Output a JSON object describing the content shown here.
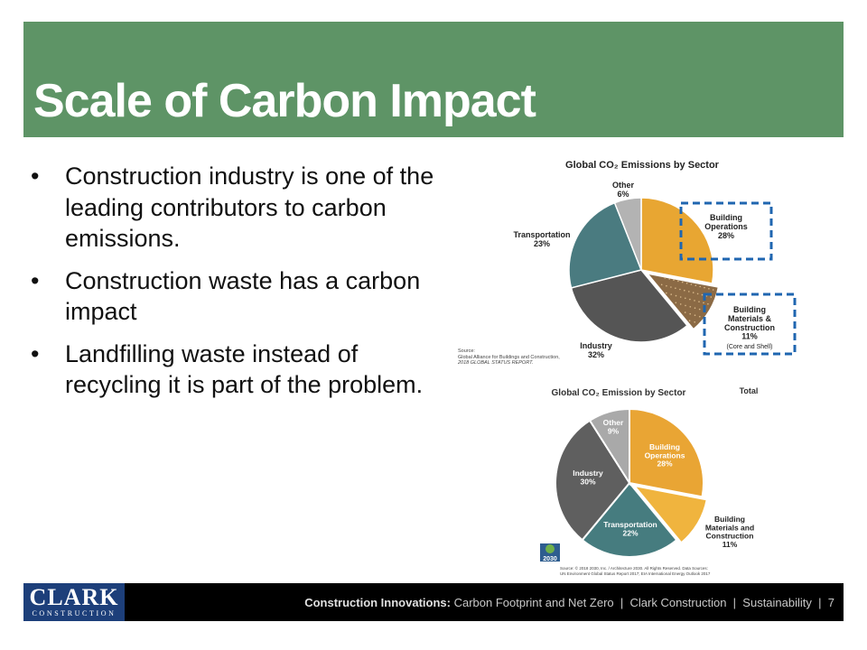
{
  "slide": {
    "title": "Scale of Carbon Impact",
    "bullets": [
      "Construction industry is one of the leading contributors to carbon emissions.",
      "Construction waste has a carbon impact",
      "Landfilling waste instead of recycling it is part of the problem."
    ]
  },
  "footer": {
    "logo_main": "CLARK",
    "logo_sub": "CONSTRUCTION",
    "series_bold": "Construction Innovations:",
    "topic": "Carbon Footprint and Net Zero",
    "separator": "|",
    "company": "Clark Construction",
    "section": "Sustainability",
    "page": "7"
  },
  "chart_data": [
    {
      "type": "pie",
      "title": "Global CO₂ Emissions by Sector",
      "slices": [
        {
          "label": "Building Operations",
          "value": 28,
          "value_label": "28%",
          "color": "#e8a632"
        },
        {
          "label": "Building Materials & Construction",
          "value": 11,
          "value_label": "11%",
          "note": "(Core and Shell)",
          "color": "#8b6a45"
        },
        {
          "label": "Industry",
          "value": 32,
          "value_label": "32%",
          "color": "#555555"
        },
        {
          "label": "Transportation",
          "value": 23,
          "value_label": "23%",
          "color": "#4a7b80"
        },
        {
          "label": "Other",
          "value": 6,
          "value_label": "6%",
          "color": "#b3b3b3"
        }
      ],
      "source": [
        "Source:",
        "Global Alliance for Buildings and Construction,",
        "2018 GLOBAL STATUS REPORT."
      ],
      "highlight_color": "#1f66b0"
    },
    {
      "type": "pie",
      "title": "Global CO₂ Emission by Sector",
      "subtitle": "Total",
      "slices": [
        {
          "label": "Building Operations",
          "value": 28,
          "value_label": "28%",
          "color": "#e9a534"
        },
        {
          "label": "Building Materials and Construction",
          "value": 11,
          "value_label": "11%",
          "color": "#f0b43e"
        },
        {
          "label": "Transportation",
          "value": 22,
          "value_label": "22%",
          "color": "#467c7f"
        },
        {
          "label": "Industry",
          "value": 30,
          "value_label": "30%",
          "color": "#5f5f5f"
        },
        {
          "label": "Other",
          "value": 9,
          "value_label": "9%",
          "color": "#a9a9a9"
        }
      ],
      "source": [
        "Source: © 2018 2030, Inc. / Architecture 2030. All Rights Reserved. Data Sources:",
        "UN Environment Global Status Report 2017; EIA International Energy Outlook 2017"
      ],
      "logo_text": "2030"
    }
  ]
}
